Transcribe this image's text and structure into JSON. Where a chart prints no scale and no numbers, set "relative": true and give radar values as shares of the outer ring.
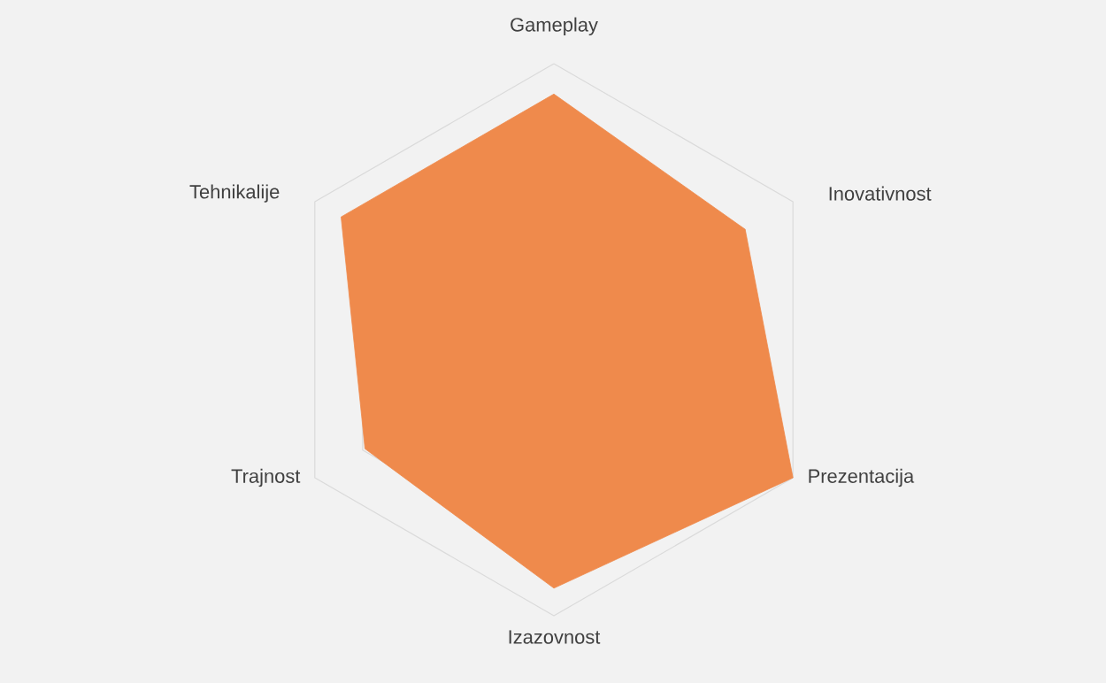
{
  "chart_data": {
    "type": "radar",
    "relative": true,
    "grid": true,
    "categories": [
      "Gameplay",
      "Inovativnost",
      "Prezentacija",
      "Izazovnost",
      "Trajnost",
      "Tehnikalije"
    ],
    "series": [
      {
        "color": "#ef8a4c",
        "values": [
          0.89,
          0.8,
          1.0,
          0.9,
          0.79,
          0.89
        ]
      }
    ]
  }
}
